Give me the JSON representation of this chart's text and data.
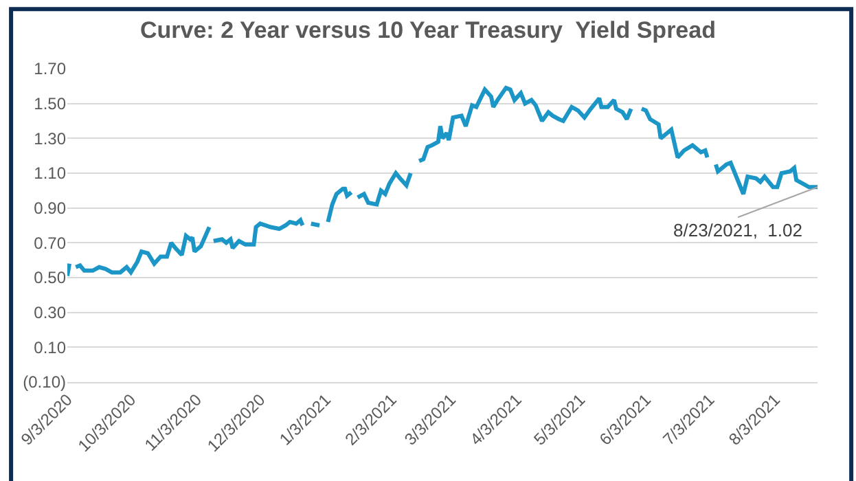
{
  "chart_data": {
    "type": "line",
    "title": "Curve: 2 Year versus 10 Year Treasury  Yield Spread",
    "x": [
      "2020-09-03",
      "2020-09-04",
      "2020-09-05",
      "2020-09-07",
      "2020-09-09",
      "2020-09-11",
      "2020-09-15",
      "2020-09-18",
      "2020-09-21",
      "2020-09-24",
      "2020-09-28",
      "2020-10-01",
      "2020-10-03",
      "2020-10-06",
      "2020-10-08",
      "2020-10-11",
      "2020-10-14",
      "2020-10-17",
      "2020-10-20",
      "2020-10-22",
      "2020-10-24",
      "2020-10-27",
      "2020-10-29",
      "2020-10-31",
      "2020-11-01",
      "2020-11-02",
      "2020-11-05",
      "2020-11-09",
      "2020-11-10",
      "2020-11-11",
      "2020-11-15",
      "2020-11-17",
      "2020-11-19",
      "2020-11-20",
      "2020-11-23",
      "2020-11-26",
      "2020-11-28",
      "2020-11-30",
      "2020-12-01",
      "2020-12-03",
      "2020-12-08",
      "2020-12-12",
      "2020-12-15",
      "2020-12-17",
      "2020-12-20",
      "2020-12-22",
      "2020-12-23",
      "2020-12-24",
      "2020-12-27",
      "2020-12-31",
      "2021-01-01",
      "2021-01-04",
      "2021-01-06",
      "2021-01-08",
      "2021-01-11",
      "2021-01-12",
      "2021-01-13",
      "2021-01-15",
      "2021-01-16",
      "2021-01-18",
      "2021-01-21",
      "2021-01-23",
      "2021-01-27",
      "2021-01-29",
      "2021-01-31",
      "2021-02-02",
      "2021-02-05",
      "2021-02-07",
      "2021-02-10",
      "2021-02-12",
      "2021-02-13",
      "2021-02-16",
      "2021-02-18",
      "2021-02-20",
      "2021-02-22",
      "2021-02-25",
      "2021-02-26",
      "2021-02-27",
      "2021-03-01",
      "2021-03-02",
      "2021-03-04",
      "2021-03-08",
      "2021-03-10",
      "2021-03-13",
      "2021-03-15",
      "2021-03-19",
      "2021-03-22",
      "2021-03-23",
      "2021-03-25",
      "2021-03-29",
      "2021-03-31",
      "2021-04-02",
      "2021-04-05",
      "2021-04-07",
      "2021-04-10",
      "2021-04-12",
      "2021-04-15",
      "2021-04-18",
      "2021-04-20",
      "2021-04-23",
      "2021-04-25",
      "2021-04-29",
      "2021-05-02",
      "2021-05-05",
      "2021-05-08",
      "2021-05-12",
      "2021-05-13",
      "2021-05-16",
      "2021-05-19",
      "2021-05-20",
      "2021-05-23",
      "2021-05-25",
      "2021-05-27",
      "2021-05-29",
      "2021-06-01",
      "2021-06-03",
      "2021-06-05",
      "2021-06-09",
      "2021-06-10",
      "2021-06-13",
      "2021-06-15",
      "2021-06-18",
      "2021-06-21",
      "2021-06-25",
      "2021-06-29",
      "2021-07-01",
      "2021-07-02",
      "2021-07-04",
      "2021-07-06",
      "2021-07-07",
      "2021-07-11",
      "2021-07-13",
      "2021-07-16",
      "2021-07-19",
      "2021-07-21",
      "2021-07-25",
      "2021-07-27",
      "2021-07-29",
      "2021-08-02",
      "2021-08-04",
      "2021-08-06",
      "2021-08-10",
      "2021-08-12",
      "2021-08-13",
      "2021-08-16",
      "2021-08-19",
      "2021-08-23"
    ],
    "series": [
      {
        "color": "#1b96c6",
        "values": [
          0.51,
          0.58,
          null,
          0.56,
          0.57,
          0.54,
          0.54,
          0.56,
          0.55,
          0.53,
          0.53,
          0.56,
          0.53,
          0.59,
          0.65,
          0.64,
          0.58,
          0.62,
          0.62,
          0.7,
          0.67,
          0.63,
          0.74,
          0.72,
          0.73,
          0.65,
          0.68,
          0.79,
          null,
          0.71,
          0.72,
          0.7,
          0.72,
          0.67,
          0.71,
          0.69,
          0.69,
          0.69,
          0.79,
          0.81,
          0.79,
          0.78,
          0.8,
          0.82,
          0.81,
          0.83,
          0.8,
          null,
          0.81,
          0.8,
          null,
          0.82,
          0.92,
          0.98,
          1.01,
          1.01,
          0.97,
          0.99,
          null,
          0.96,
          0.98,
          0.93,
          0.92,
          1.0,
          0.98,
          1.04,
          1.1,
          1.07,
          1.03,
          1.1,
          null,
          1.17,
          1.18,
          1.25,
          1.26,
          1.28,
          1.37,
          1.3,
          1.33,
          1.29,
          1.42,
          1.43,
          1.37,
          1.49,
          1.48,
          1.58,
          1.54,
          1.48,
          1.52,
          1.59,
          1.58,
          1.52,
          1.56,
          1.5,
          1.52,
          1.49,
          1.4,
          1.45,
          1.43,
          1.41,
          1.4,
          1.48,
          1.46,
          1.42,
          1.47,
          1.53,
          1.48,
          1.48,
          1.52,
          1.47,
          1.45,
          1.41,
          1.47,
          null,
          1.47,
          1.46,
          1.41,
          1.38,
          1.3,
          1.33,
          1.35,
          1.19,
          1.23,
          1.26,
          1.22,
          1.23,
          1.19,
          null,
          1.15,
          1.11,
          1.15,
          1.16,
          1.07,
          0.98,
          1.08,
          1.07,
          1.05,
          1.08,
          1.02,
          1.02,
          1.1,
          1.11,
          1.13,
          1.06,
          1.04,
          1.02,
          1.02
        ]
      }
    ],
    "xlim": [
      "2020-09-03",
      "2021-08-23"
    ],
    "xticks": [
      {
        "value": "2020-09-03",
        "label": "9/3/2020"
      },
      {
        "value": "2020-10-03",
        "label": "10/3/2020"
      },
      {
        "value": "2020-11-03",
        "label": "11/3/2020"
      },
      {
        "value": "2020-12-03",
        "label": "12/3/2020"
      },
      {
        "value": "2021-01-03",
        "label": "1/3/2021"
      },
      {
        "value": "2021-02-03",
        "label": "2/3/2021"
      },
      {
        "value": "2021-03-03",
        "label": "3/3/2021"
      },
      {
        "value": "2021-04-03",
        "label": "4/3/2021"
      },
      {
        "value": "2021-05-03",
        "label": "5/3/2021"
      },
      {
        "value": "2021-06-03",
        "label": "6/3/2021"
      },
      {
        "value": "2021-07-03",
        "label": "7/3/2021"
      },
      {
        "value": "2021-08-03",
        "label": "8/3/2021"
      }
    ],
    "ylim": [
      -0.1,
      1.7
    ],
    "yticks": [
      {
        "value": -0.1,
        "label": "(0.10)"
      },
      {
        "value": 0.1,
        "label": "0.10"
      },
      {
        "value": 0.3,
        "label": "0.30"
      },
      {
        "value": 0.5,
        "label": "0.50"
      },
      {
        "value": 0.7,
        "label": "0.70"
      },
      {
        "value": 0.9,
        "label": "0.90"
      },
      {
        "value": 1.1,
        "label": "1.10"
      },
      {
        "value": 1.3,
        "label": "1.30"
      },
      {
        "value": 1.5,
        "label": "1.50"
      },
      {
        "value": 1.7,
        "label": "1.70"
      }
    ],
    "annotations": [
      {
        "text": "8/23/2021,  1.02",
        "x": "2021-08-23",
        "y": 1.02
      }
    ],
    "grid": "y",
    "marker": "none",
    "line_style": "solid"
  }
}
